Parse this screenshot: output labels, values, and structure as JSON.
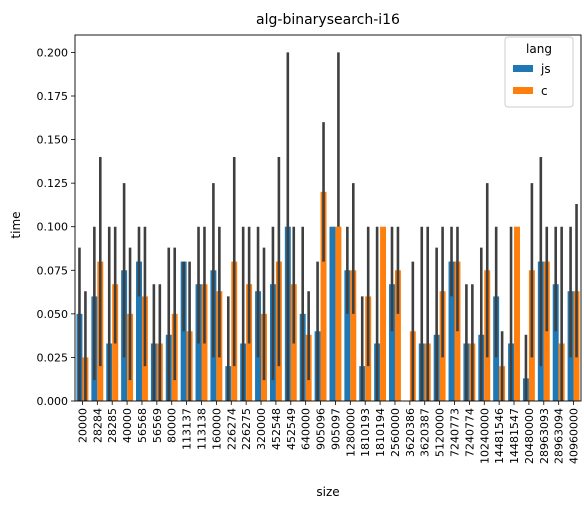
{
  "chart_data": {
    "type": "bar",
    "title": "alg-binarysearch-i16",
    "xlabel": "size",
    "ylabel": "time",
    "ylim": [
      0,
      0.21
    ],
    "yticks": [
      "0.000",
      "0.025",
      "0.050",
      "0.075",
      "0.100",
      "0.125",
      "0.150",
      "0.175",
      "0.200"
    ],
    "categories": [
      "20000",
      "28284",
      "28285",
      "40000",
      "56568",
      "56569",
      "80000",
      "113137",
      "113138",
      "160000",
      "226274",
      "226275",
      "320000",
      "452548",
      "452549",
      "640000",
      "905096",
      "905097",
      "1280000",
      "1810193",
      "1810194",
      "2560000",
      "3620386",
      "3620387",
      "5120000",
      "7240773",
      "7240774",
      "10240000",
      "14481546",
      "14481547",
      "20480000",
      "28963093",
      "28963094",
      "40960000"
    ],
    "legend": {
      "title": "lang",
      "position": "top-right"
    },
    "series": [
      {
        "name": "js",
        "color": "#1f77b4",
        "values": [
          0.05,
          0.06,
          0.033,
          0.075,
          0.08,
          0.033,
          0.038,
          0.08,
          0.067,
          0.075,
          0.02,
          0.033,
          0.063,
          0.067,
          0.1,
          0.05,
          0.04,
          0.1,
          0.075,
          0.02,
          0.033,
          0.067,
          0.0,
          0.033,
          0.038,
          0.08,
          0.033,
          0.038,
          0.06,
          0.033,
          0.013,
          0.08,
          0.067,
          0.063
        ],
        "ci_low": [
          0.0,
          0.012,
          0.0,
          0.025,
          0.06,
          0.0,
          0.0,
          0.04,
          0.033,
          0.025,
          0.0,
          0.0,
          0.025,
          0.012,
          0.0,
          0.0,
          0.0,
          0.1,
          0.05,
          0.0,
          0.0,
          0.04,
          0.0,
          0.0,
          0.0,
          0.06,
          0.0,
          0.0,
          0.025,
          0.0,
          0.0,
          0.02,
          0.04,
          0.025
        ],
        "ci_high": [
          0.088,
          0.1,
          0.1,
          0.125,
          0.1,
          0.067,
          0.088,
          0.08,
          0.1,
          0.125,
          0.06,
          0.1,
          0.1,
          0.1,
          0.2,
          0.1,
          0.08,
          0.1,
          0.1,
          0.06,
          0.1,
          0.1,
          0.0,
          0.1,
          0.088,
          0.1,
          0.067,
          0.088,
          0.1,
          0.1,
          0.038,
          0.14,
          0.1,
          0.1
        ]
      },
      {
        "name": "c",
        "color": "#ff7f0e",
        "values": [
          0.025,
          0.08,
          0.067,
          0.05,
          0.06,
          0.033,
          0.05,
          0.04,
          0.067,
          0.063,
          0.08,
          0.067,
          0.05,
          0.08,
          0.067,
          0.038,
          0.12,
          0.1,
          0.075,
          0.06,
          0.1,
          0.075,
          0.04,
          0.033,
          0.063,
          0.08,
          0.033,
          0.075,
          0.02,
          0.1,
          0.075,
          0.08,
          0.033,
          0.063
        ],
        "ci_low": [
          0.0,
          0.02,
          0.033,
          0.012,
          0.02,
          0.0,
          0.012,
          0.0,
          0.033,
          0.025,
          0.02,
          0.033,
          0.012,
          0.02,
          0.033,
          0.012,
          0.08,
          0.1,
          0.05,
          0.02,
          0.1,
          0.05,
          0.0,
          0.0,
          0.025,
          0.04,
          0.0,
          0.025,
          0.0,
          0.1,
          0.025,
          0.04,
          0.0,
          0.025
        ],
        "ci_high": [
          0.063,
          0.14,
          0.1,
          0.088,
          0.1,
          0.067,
          0.088,
          0.08,
          0.1,
          0.1,
          0.14,
          0.1,
          0.088,
          0.14,
          0.1,
          0.063,
          0.16,
          0.2,
          0.125,
          0.1,
          0.1,
          0.1,
          0.08,
          0.1,
          0.1,
          0.1,
          0.067,
          0.125,
          0.04,
          0.1,
          0.125,
          0.1,
          0.1,
          0.113
        ]
      }
    ]
  }
}
